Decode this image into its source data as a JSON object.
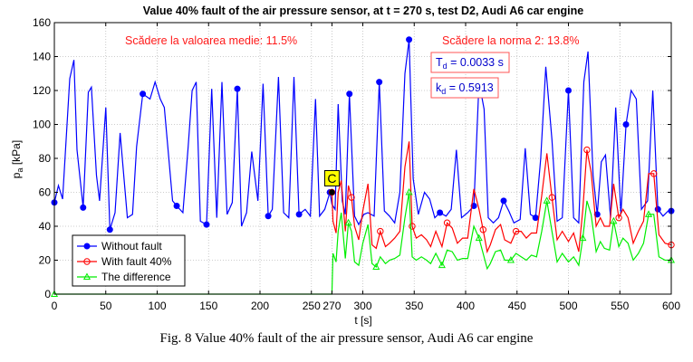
{
  "chart_data": {
    "type": "line",
    "title": "Value 40% fault of the air pressure sensor, at t = 270 s, test D2, Audi A6 car engine",
    "xlabel": "t [s]",
    "ylabel": "p_a [kPa]",
    "xlim": [
      0,
      600
    ],
    "ylim": [
      0,
      160
    ],
    "xticks": [
      0,
      50,
      100,
      150,
      200,
      250,
      270,
      300,
      350,
      400,
      450,
      500,
      550,
      600
    ],
    "yticks": [
      0,
      20,
      40,
      60,
      80,
      100,
      120,
      140,
      160
    ],
    "grid": true,
    "legend_position": "lower-left",
    "annotations": {
      "mean_drop": "Scădere la valoarea medie: 11.5%",
      "norm2_drop": "Scădere la norma 2: 13.8%",
      "td_prefix": "T",
      "td_sub": "d",
      "td_value": " = 0.0033 s",
      "kd_prefix": "k",
      "kd_sub": "d",
      "kd_value": " = 0.5913",
      "point_label": "C"
    },
    "series": [
      {
        "name": "Without fault",
        "color": "#0000ff",
        "marker": "dot",
        "x": [
          0,
          4,
          8,
          15,
          19,
          22,
          28,
          33,
          36,
          41,
          44,
          50,
          54,
          59,
          64,
          71,
          76,
          80,
          86,
          93,
          98,
          103,
          107,
          115,
          119,
          125,
          130,
          134,
          138,
          142,
          148,
          153,
          158,
          163,
          168,
          173,
          178,
          182,
          187,
          192,
          198,
          203,
          208,
          212,
          218,
          223,
          228,
          233,
          238,
          244,
          249,
          254,
          258,
          263,
          268,
          270,
          273,
          276,
          280,
          283,
          287,
          292,
          296,
          301,
          305,
          311,
          316,
          321,
          326,
          331,
          336,
          341,
          345,
          349,
          354,
          360,
          365,
          370,
          375,
          381,
          386,
          391,
          396,
          402,
          408,
          413,
          418,
          422,
          427,
          432,
          437,
          442,
          447,
          453,
          458,
          463,
          468,
          473,
          478,
          484,
          489,
          494,
          500,
          505,
          510,
          515,
          519,
          524,
          528,
          532,
          536,
          541,
          546,
          551,
          556,
          561,
          566,
          571,
          577,
          582,
          587,
          592,
          597,
          600
        ],
        "y": [
          54,
          64,
          56,
          127,
          138,
          85,
          51,
          119,
          122,
          70,
          55,
          110,
          38,
          48,
          95,
          45,
          47,
          87,
          118,
          115,
          125,
          115,
          110,
          55,
          52,
          48,
          86,
          120,
          125,
          43,
          41,
          121,
          45,
          125,
          47,
          54,
          121,
          40,
          48,
          84,
          55,
          124,
          46,
          50,
          128,
          48,
          45,
          128,
          47,
          50,
          46,
          115,
          46,
          50,
          60,
          53,
          50,
          112,
          55,
          47,
          118,
          46,
          41,
          47,
          48,
          46,
          125,
          49,
          46,
          42,
          60,
          130,
          150,
          68,
          47,
          60,
          56,
          45,
          48,
          46,
          50,
          85,
          45,
          48,
          52,
          125,
          109,
          45,
          42,
          45,
          55,
          49,
          42,
          44,
          86,
          47,
          45,
          80,
          134,
          91,
          43,
          45,
          120,
          45,
          42,
          125,
          143,
          70,
          47,
          78,
          82,
          45,
          110,
          47,
          100,
          120,
          115,
          50,
          55,
          120,
          50,
          46,
          49,
          49
        ]
      },
      {
        "name": "With fault 40%",
        "color": "#ff0000",
        "marker": "circle",
        "x": [
          270,
          271,
          274,
          276,
          279,
          283,
          286,
          289,
          292,
          296,
          300,
          305,
          309,
          313,
          317,
          322,
          326,
          331,
          336,
          341,
          345,
          348,
          352,
          357,
          362,
          366,
          371,
          377,
          382,
          387,
          392,
          397,
          402,
          408,
          413,
          417,
          421,
          424,
          429,
          434,
          438,
          444,
          449,
          454,
          459,
          464,
          469,
          474,
          479,
          484,
          489,
          494,
          500,
          505,
          510,
          514,
          518,
          522,
          527,
          531,
          535,
          540,
          544,
          549,
          553,
          558,
          563,
          568,
          573,
          578,
          583,
          588,
          594,
          600
        ],
        "y": [
          60,
          43,
          36,
          60,
          67,
          37,
          64,
          57,
          40,
          32,
          49,
          65,
          29,
          27,
          37,
          28,
          30,
          33,
          37,
          75,
          90,
          40,
          33,
          35,
          32,
          28,
          37,
          28,
          42,
          39,
          30,
          33,
          33,
          62,
          50,
          38,
          25,
          29,
          38,
          41,
          32,
          30,
          37,
          37,
          33,
          36,
          36,
          58,
          83,
          57,
          32,
          37,
          31,
          36,
          25,
          50,
          85,
          72,
          40,
          45,
          40,
          40,
          65,
          45,
          50,
          45,
          30,
          37,
          43,
          71,
          71,
          35,
          30,
          29
        ]
      },
      {
        "name": "The difference",
        "color": "#00ee00",
        "marker": "triangle",
        "x": [
          0,
          270,
          271,
          274,
          276,
          279,
          283,
          286,
          289,
          292,
          296,
          300,
          305,
          309,
          313,
          317,
          322,
          326,
          331,
          336,
          341,
          345,
          348,
          352,
          357,
          362,
          366,
          371,
          377,
          382,
          387,
          392,
          397,
          402,
          408,
          413,
          417,
          421,
          424,
          429,
          434,
          438,
          444,
          449,
          454,
          459,
          464,
          469,
          474,
          479,
          484,
          489,
          494,
          500,
          505,
          510,
          514,
          518,
          522,
          527,
          531,
          535,
          540,
          544,
          549,
          553,
          558,
          563,
          568,
          573,
          578,
          583,
          588,
          594,
          600
        ],
        "y": [
          0,
          0,
          24,
          19,
          37,
          48,
          21,
          42,
          37,
          19,
          17,
          30,
          41,
          18,
          16,
          22,
          18,
          20,
          21,
          23,
          45,
          60,
          22,
          20,
          22,
          20,
          18,
          24,
          17,
          26,
          25,
          20,
          21,
          21,
          40,
          33,
          24,
          15,
          18,
          25,
          26,
          20,
          20,
          24,
          22,
          20,
          23,
          22,
          37,
          55,
          37,
          19,
          24,
          19,
          22,
          17,
          33,
          55,
          47,
          25,
          31,
          27,
          26,
          43,
          28,
          33,
          30,
          20,
          24,
          30,
          47,
          47,
          22,
          20,
          20
        ]
      }
    ]
  },
  "caption": "Fig. 8 Value 40% fault of the air pressure sensor, Audi A6 car engine"
}
